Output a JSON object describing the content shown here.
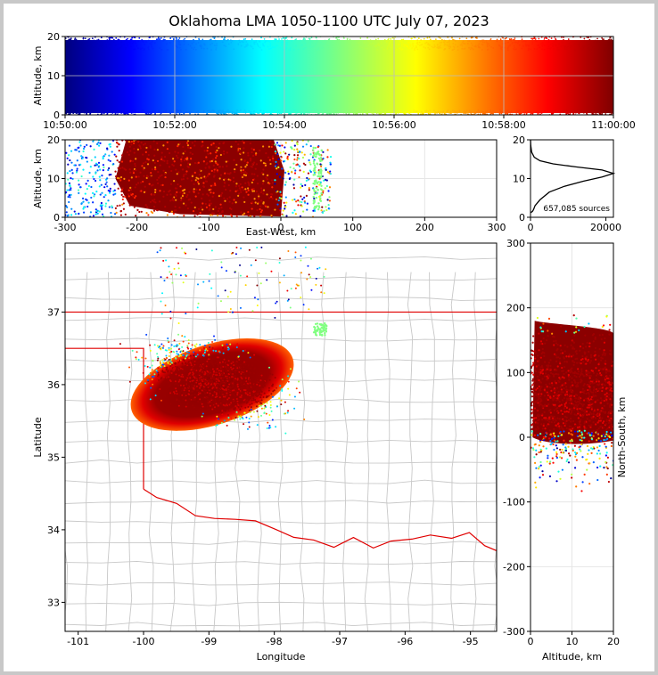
{
  "figure": {
    "title": "Oklahoma LMA 1050-1100 UTC July 07, 2023",
    "source_count": "657,085 sources"
  },
  "chart_data": [
    {
      "type": "scatter",
      "panel": "time-altitude",
      "ylabel": "Altitude, km",
      "xlim": [
        "10:50:00",
        "11:00:00"
      ],
      "ylim": [
        0,
        20
      ],
      "xticks": [
        "10:50:00",
        "10:52:00",
        "10:54:00",
        "10:56:00",
        "10:58:00",
        "11:00:00"
      ],
      "yticks": [
        0,
        10,
        20
      ],
      "colormap": "jet (by time)",
      "grid": true
    },
    {
      "type": "scatter",
      "panel": "east-west-altitude",
      "xlabel": "East-West, km",
      "ylabel": "Altitude, km",
      "xlim": [
        -300,
        300
      ],
      "ylim": [
        0,
        20
      ],
      "xticks": [
        -300,
        -200,
        -100,
        0,
        100,
        200,
        300
      ],
      "yticks": [
        0,
        10,
        20
      ],
      "grid": true
    },
    {
      "type": "line",
      "panel": "altitude-histogram",
      "xlim": [
        0,
        22000
      ],
      "ylim": [
        0,
        20
      ],
      "xticks": [
        0,
        20000
      ],
      "yticks": [
        0,
        10,
        20
      ],
      "x": [
        0,
        500,
        800,
        1200,
        2500,
        5000,
        9000,
        14000,
        19000,
        22000,
        19000,
        12000,
        6000,
        2500,
        1000,
        300,
        80,
        0
      ],
      "y": [
        1.2,
        1.5,
        2.0,
        3.0,
        4.5,
        6.5,
        8.0,
        9.3,
        10.4,
        11.3,
        12.2,
        13.0,
        13.8,
        14.6,
        15.5,
        16.8,
        18.5,
        20
      ]
    },
    {
      "type": "scatter",
      "panel": "plan-view",
      "xlabel": "Longitude",
      "ylabel": "Latitude",
      "xlim": [
        -101.2,
        -94.6
      ],
      "ylim": [
        32.6,
        37.95
      ],
      "xticks": [
        -101,
        -100,
        -99,
        -98,
        -97,
        -96,
        -95
      ],
      "yticks": [
        33,
        34,
        35,
        36,
        37
      ],
      "state_boundary_color": "#e00000",
      "county_line_color": "#c8c8c8"
    },
    {
      "type": "scatter",
      "panel": "altitude-north-south",
      "xlabel": "Altitude, km",
      "ylabel": "North-South, km",
      "xlim": [
        0,
        20
      ],
      "ylim": [
        -300,
        300
      ],
      "xticks": [
        0,
        10,
        20
      ],
      "yticks": [
        -300,
        -200,
        -100,
        0,
        100,
        200,
        300
      ],
      "grid": true
    }
  ]
}
